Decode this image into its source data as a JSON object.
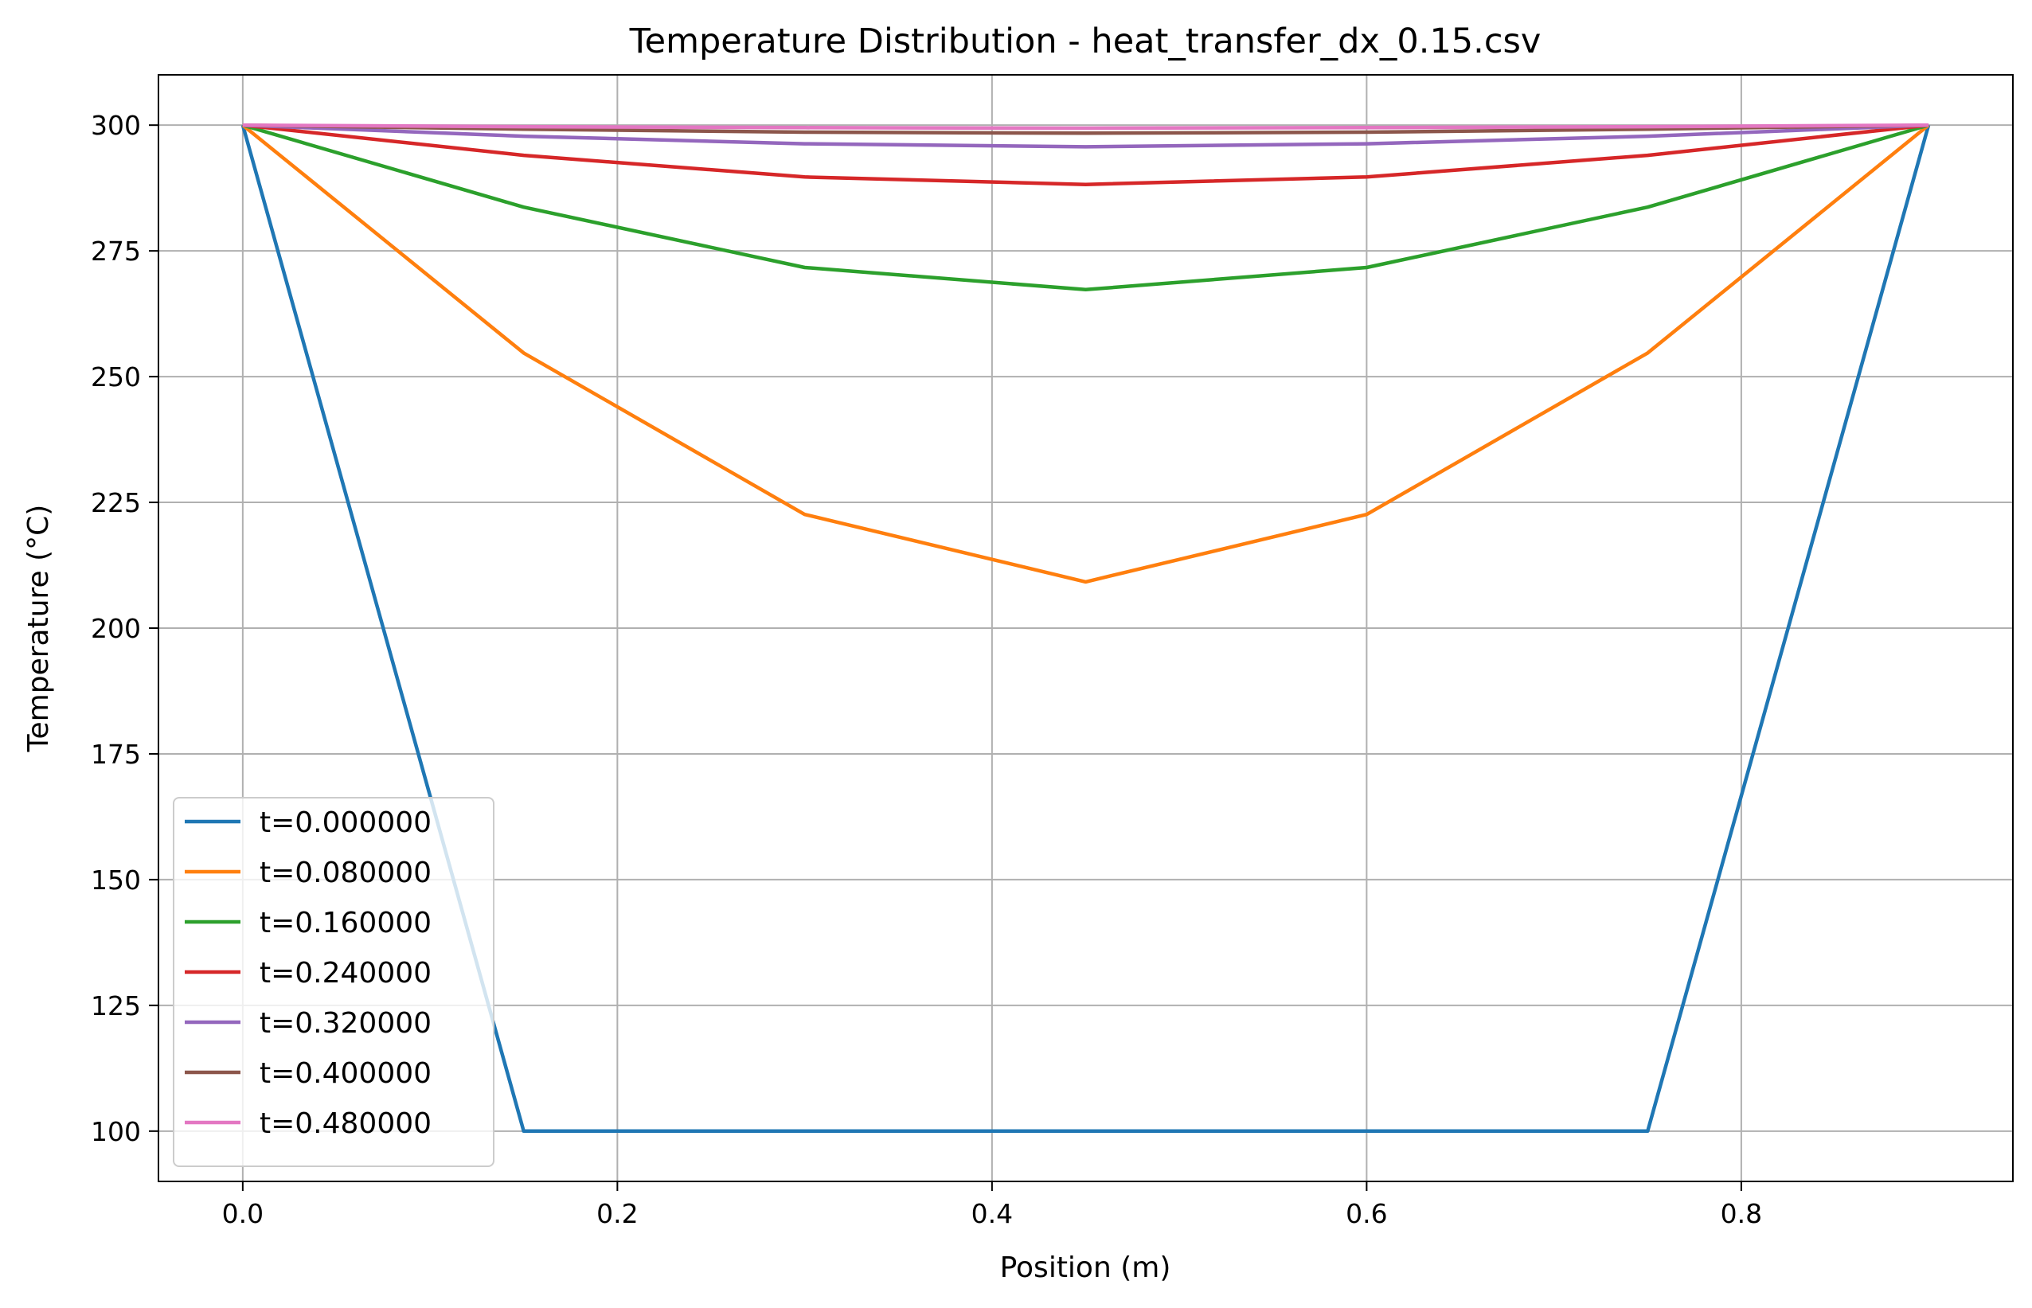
{
  "chart_data": {
    "type": "line",
    "title": "Temperature Distribution - heat_transfer_dx_0.15.csv",
    "xlabel": "Position (m)",
    "ylabel": "Temperature (°C)",
    "xlim": [
      -0.045,
      0.945
    ],
    "ylim": [
      90,
      310
    ],
    "xticks": [
      0.0,
      0.2,
      0.4,
      0.6,
      0.8
    ],
    "xtick_labels": [
      "0.0",
      "0.2",
      "0.4",
      "0.6",
      "0.8"
    ],
    "yticks": [
      100,
      125,
      150,
      175,
      200,
      225,
      250,
      275,
      300
    ],
    "ytick_labels": [
      "100",
      "125",
      "150",
      "175",
      "200",
      "225",
      "250",
      "275",
      "300"
    ],
    "grid": true,
    "legend_position": "lower-left",
    "x": [
      0.0,
      0.15,
      0.3,
      0.45,
      0.6,
      0.75,
      0.9
    ],
    "series": [
      {
        "name": "t=0.000000",
        "color": "#1f77b4",
        "values": [
          300,
          100,
          100,
          100,
          100,
          100,
          300
        ]
      },
      {
        "name": "t=0.080000",
        "color": "#ff7f0e",
        "values": [
          300,
          254.7,
          222.6,
          209.2,
          222.6,
          254.7,
          300
        ]
      },
      {
        "name": "t=0.160000",
        "color": "#2ca02c",
        "values": [
          300,
          283.7,
          271.7,
          267.3,
          271.7,
          283.7,
          300
        ]
      },
      {
        "name": "t=0.240000",
        "color": "#d62728",
        "values": [
          300,
          294.0,
          289.7,
          288.2,
          289.7,
          294.0,
          300
        ]
      },
      {
        "name": "t=0.320000",
        "color": "#9467bd",
        "values": [
          300,
          297.8,
          296.3,
          295.7,
          296.3,
          297.8,
          300
        ]
      },
      {
        "name": "t=0.400000",
        "color": "#8c564b",
        "values": [
          300,
          299.2,
          298.6,
          298.4,
          298.6,
          299.2,
          300
        ]
      },
      {
        "name": "t=0.480000",
        "color": "#e377c2",
        "values": [
          300,
          299.7,
          299.5,
          299.4,
          299.5,
          299.7,
          300
        ]
      }
    ]
  }
}
